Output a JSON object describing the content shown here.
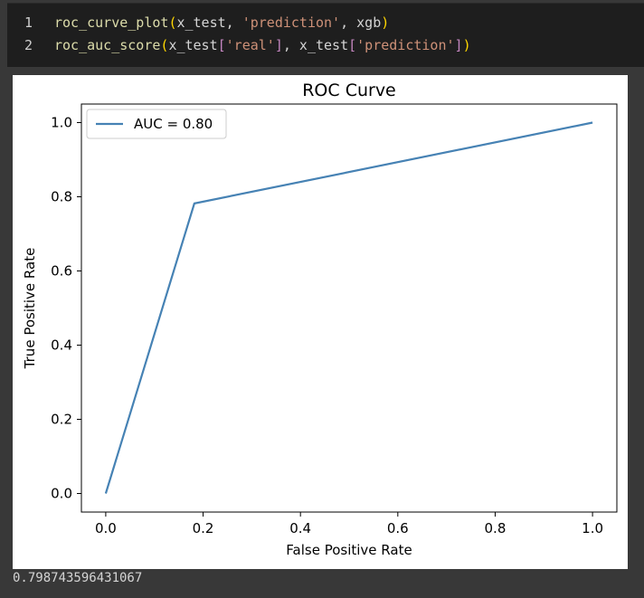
{
  "code": {
    "lines": [
      {
        "number": "1",
        "tokens": [
          {
            "t": "roc_curve_plot",
            "c": "fn"
          },
          {
            "t": "(",
            "c": "paren"
          },
          {
            "t": "x_test, ",
            "c": "id"
          },
          {
            "t": "'prediction'",
            "c": "str"
          },
          {
            "t": ", xgb",
            "c": "id"
          },
          {
            "t": ")",
            "c": "paren"
          }
        ]
      },
      {
        "number": "2",
        "tokens": [
          {
            "t": "roc_auc_score",
            "c": "fn"
          },
          {
            "t": "(",
            "c": "paren"
          },
          {
            "t": "x_test",
            "c": "id"
          },
          {
            "t": "[",
            "c": "bracket"
          },
          {
            "t": "'real'",
            "c": "str"
          },
          {
            "t": "]",
            "c": "bracket"
          },
          {
            "t": ", x_test",
            "c": "id"
          },
          {
            "t": "[",
            "c": "bracket"
          },
          {
            "t": "'prediction'",
            "c": "str"
          },
          {
            "t": "]",
            "c": "bracket"
          },
          {
            "t": ")",
            "c": "paren"
          }
        ]
      }
    ]
  },
  "output": {
    "text": "0.798743596431067"
  },
  "chart_data": {
    "type": "line",
    "title": "ROC Curve",
    "xlabel": "False Positive Rate",
    "ylabel": "True Positive Rate",
    "xlim": [
      -0.05,
      1.05
    ],
    "ylim": [
      -0.05,
      1.05
    ],
    "xticks": [
      0.0,
      0.2,
      0.4,
      0.6,
      0.8,
      1.0
    ],
    "yticks": [
      0.0,
      0.2,
      0.4,
      0.6,
      0.8,
      1.0
    ],
    "xtick_labels": [
      "0.0",
      "0.2",
      "0.4",
      "0.6",
      "0.8",
      "1.0"
    ],
    "ytick_labels": [
      "0.0",
      "0.2",
      "0.4",
      "0.6",
      "0.8",
      "1.0"
    ],
    "grid": false,
    "legend_position": "top-left",
    "series": [
      {
        "name": "AUC = 0.80",
        "color": "#4682b4",
        "x": [
          0.0,
          0.182,
          1.0
        ],
        "y": [
          0.0,
          0.782,
          1.0
        ]
      }
    ]
  }
}
